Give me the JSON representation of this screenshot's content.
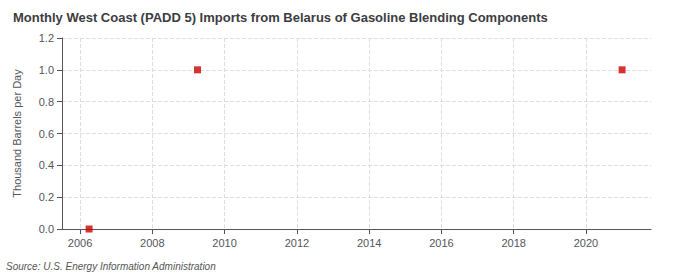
{
  "chart_data": {
    "type": "scatter",
    "title": "Monthly West Coast (PADD 5) Imports from Belarus of Gasoline Blending Components",
    "y_label": "Thousand Barrels per Day",
    "annotations": [
      "Source: U.S. Energy Information Administration"
    ],
    "x": [
      2006.25,
      2009.25,
      2021.0
    ],
    "values": [
      0.0,
      1.0,
      1.0
    ],
    "color": "#cc0000",
    "marker": "square",
    "xlim": [
      2005.5,
      2021.8
    ],
    "xticks": [
      2006,
      2008,
      2010,
      2012,
      2014,
      2016,
      2018,
      2020
    ],
    "ylim": [
      0.0,
      1.2
    ],
    "yticks": [
      {
        "value": 0.0,
        "label": "0.0"
      },
      0.2,
      0.4,
      0.6,
      0.8,
      {
        "value": 1.0,
        "label": "1.0"
      },
      1.2
    ],
    "grid": true
  }
}
